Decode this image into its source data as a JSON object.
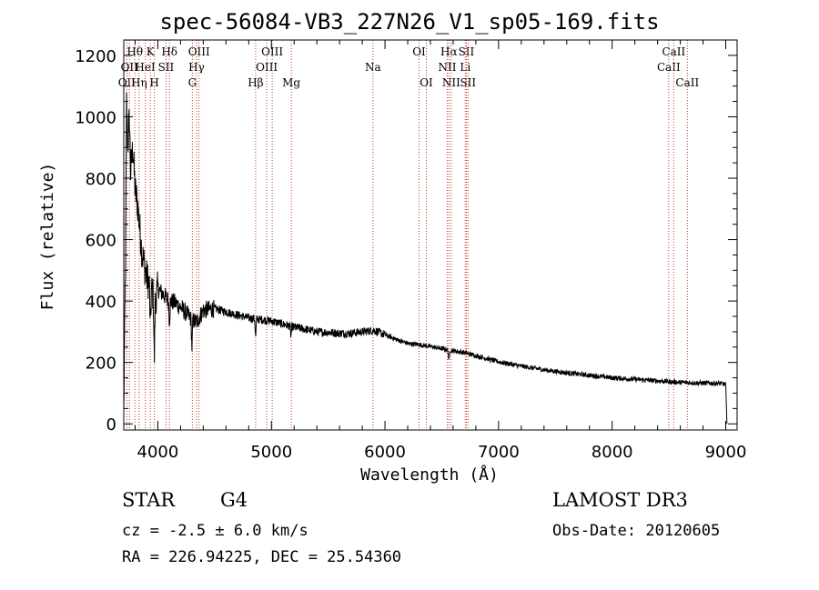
{
  "chart_data": {
    "type": "line",
    "title": "spec-56084-VB3_227N26_V1_sp05-169.fits",
    "xlabel": "Wavelength (Å)",
    "ylabel": "Flux (relative)",
    "xlim": [
      3700,
      9100
    ],
    "ylim": [
      -20,
      1250
    ],
    "xticks": [
      4000,
      5000,
      6000,
      7000,
      8000,
      9000
    ],
    "yticks": [
      0,
      200,
      400,
      600,
      800,
      1000,
      1200
    ],
    "spectrum_keypoints": [
      [
        3700,
        30
      ],
      [
        3715,
        520
      ],
      [
        3725,
        1050
      ],
      [
        3735,
        900
      ],
      [
        3750,
        1000
      ],
      [
        3760,
        820
      ],
      [
        3780,
        900
      ],
      [
        3800,
        760
      ],
      [
        3820,
        720
      ],
      [
        3840,
        640
      ],
      [
        3860,
        560
      ],
      [
        3880,
        520
      ],
      [
        3900,
        480
      ],
      [
        3920,
        460
      ],
      [
        3940,
        440
      ],
      [
        3960,
        420
      ],
      [
        3980,
        410
      ],
      [
        4000,
        440
      ],
      [
        4050,
        420
      ],
      [
        4100,
        400
      ],
      [
        4150,
        395
      ],
      [
        4200,
        380
      ],
      [
        4250,
        360
      ],
      [
        4300,
        340
      ],
      [
        4340,
        330
      ],
      [
        4400,
        370
      ],
      [
        4500,
        375
      ],
      [
        4600,
        365
      ],
      [
        4700,
        355
      ],
      [
        4800,
        345
      ],
      [
        4900,
        340
      ],
      [
        5000,
        335
      ],
      [
        5100,
        325
      ],
      [
        5200,
        315
      ],
      [
        5300,
        308
      ],
      [
        5400,
        300
      ],
      [
        5500,
        298
      ],
      [
        5600,
        295
      ],
      [
        5700,
        295
      ],
      [
        5800,
        300
      ],
      [
        5850,
        302
      ],
      [
        5900,
        305
      ],
      [
        6000,
        290
      ],
      [
        6100,
        275
      ],
      [
        6200,
        262
      ],
      [
        6300,
        258
      ],
      [
        6400,
        252
      ],
      [
        6500,
        245
      ],
      [
        6600,
        238
      ],
      [
        6700,
        232
      ],
      [
        6800,
        222
      ],
      [
        6900,
        212
      ],
      [
        7000,
        202
      ],
      [
        7200,
        188
      ],
      [
        7400,
        176
      ],
      [
        7600,
        166
      ],
      [
        7800,
        158
      ],
      [
        8000,
        150
      ],
      [
        8200,
        145
      ],
      [
        8400,
        140
      ],
      [
        8600,
        135
      ],
      [
        8800,
        133
      ],
      [
        8950,
        132
      ],
      [
        9000,
        128
      ],
      [
        9010,
        0
      ]
    ],
    "absorption_dips": [
      {
        "wavelength": 3934,
        "depth": 130
      },
      {
        "wavelength": 3969,
        "depth": 200
      },
      {
        "wavelength": 4102,
        "depth": 60
      },
      {
        "wavelength": 4300,
        "depth": 90
      },
      {
        "wavelength": 4861,
        "depth": 60
      },
      {
        "wavelength": 5172,
        "depth": 30
      },
      {
        "wavelength": 6563,
        "depth": 35
      }
    ],
    "line_markers": [
      {
        "wavelength": 3727,
        "label": "OII",
        "row": 2
      },
      {
        "wavelength": 3750,
        "label": "OII",
        "row": 1
      },
      {
        "wavelength": 3798,
        "label": "Hθ",
        "row": 0
      },
      {
        "wavelength": 3835,
        "label": "Hη",
        "row": 2
      },
      {
        "wavelength": 3889,
        "label": "HeI",
        "row": 1
      },
      {
        "wavelength": 3934,
        "label": "K",
        "row": 0
      },
      {
        "wavelength": 3969,
        "label": "H",
        "row": 2
      },
      {
        "wavelength": 4072,
        "label": "SII",
        "row": 1
      },
      {
        "wavelength": 4102,
        "label": "Hδ",
        "row": 0
      },
      {
        "wavelength": 4304,
        "label": "G",
        "row": 2
      },
      {
        "wavelength": 4341,
        "label": "Hγ",
        "row": 1
      },
      {
        "wavelength": 4363,
        "label": "OIII",
        "row": 0
      },
      {
        "wavelength": 4861,
        "label": "Hβ",
        "row": 2
      },
      {
        "wavelength": 4959,
        "label": "OIII",
        "row": 1
      },
      {
        "wavelength": 5007,
        "label": "OIII",
        "row": 0
      },
      {
        "wavelength": 5175,
        "label": "Mg",
        "row": 2
      },
      {
        "wavelength": 5894,
        "label": "Na",
        "row": 1
      },
      {
        "wavelength": 6300,
        "label": "OI",
        "row": 0
      },
      {
        "wavelength": 6364,
        "label": "OI",
        "row": 2
      },
      {
        "wavelength": 6548,
        "label": "NII",
        "row": 1
      },
      {
        "wavelength": 6563,
        "label": "Hα",
        "row": 0
      },
      {
        "wavelength": 6583,
        "label": "NII",
        "row": 2
      },
      {
        "wavelength": 6707,
        "label": "Li",
        "row": 1
      },
      {
        "wavelength": 6716,
        "label": "SII",
        "row": 0
      },
      {
        "wavelength": 6731,
        "label": "SII",
        "row": 2
      },
      {
        "wavelength": 8498,
        "label": "CaII",
        "row": 1
      },
      {
        "wavelength": 8542,
        "label": "CaII",
        "row": 0
      },
      {
        "wavelength": 8662,
        "label": "CaII",
        "row": 2
      }
    ]
  },
  "info": {
    "object_class": "STAR",
    "subclass": "G4",
    "cz": "cz = -2.5 ± 6.0 km/s",
    "coords": "RA = 226.94225, DEC =  25.54360",
    "survey": "LAMOST DR3",
    "obs_date": "Obs-Date: 20120605"
  },
  "colors": {
    "spectrum": "#000000",
    "line_marker": "#c0392b",
    "axis": "#000000"
  }
}
